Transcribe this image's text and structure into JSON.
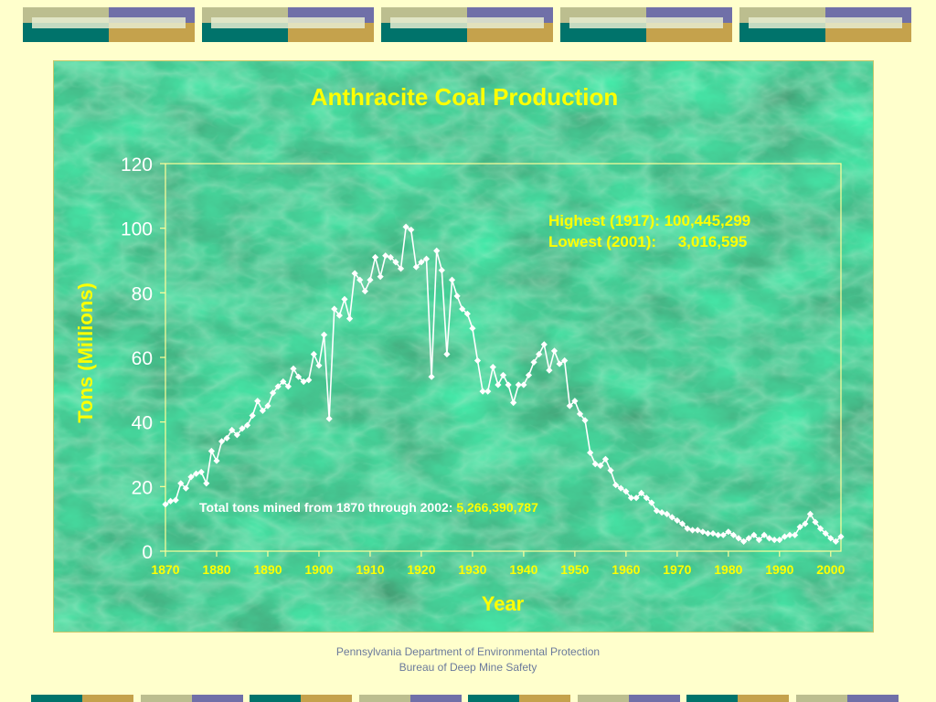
{
  "colors": {
    "background": "#ffffcc",
    "panel_green": "#2e6b45",
    "title": "#ffff00",
    "axis": "#ffff99",
    "data_line": "#ffffff",
    "footer_text": "#6b7a9c",
    "tile_olive": "#bcbe8f",
    "tile_purple": "#7070a8",
    "tile_teal": "#00736b",
    "tile_gold": "#c5a24c"
  },
  "annotations": {
    "highest": "Highest (1917): 100,445,299",
    "lowest": "Lowest (2001):     3,016,595",
    "total_label": "Total tons mined from 1870 through 2002: ",
    "total_value": "5,266,390,787"
  },
  "footer": {
    "line1": "Pennsylvania Department of Environmental Protection",
    "line2": "Bureau of Deep Mine Safety"
  },
  "chart_data": {
    "type": "line",
    "title": "Anthracite Coal Production",
    "xlabel": "Year",
    "ylabel": "Tons (Millions)",
    "xlim": [
      1870,
      2002
    ],
    "ylim": [
      0,
      120
    ],
    "x_ticks": [
      1870,
      1880,
      1890,
      1900,
      1910,
      1920,
      1930,
      1940,
      1950,
      1960,
      1970,
      1980,
      1990,
      2000
    ],
    "y_ticks": [
      0,
      20,
      40,
      60,
      80,
      100,
      120
    ],
    "grid": false,
    "markers": "diamond",
    "series": [
      {
        "name": "",
        "x": [
          1870,
          1871,
          1872,
          1873,
          1874,
          1875,
          1876,
          1877,
          1878,
          1879,
          1880,
          1881,
          1882,
          1883,
          1884,
          1885,
          1886,
          1887,
          1888,
          1889,
          1890,
          1891,
          1892,
          1893,
          1894,
          1895,
          1896,
          1897,
          1898,
          1899,
          1900,
          1901,
          1902,
          1903,
          1904,
          1905,
          1906,
          1907,
          1908,
          1909,
          1910,
          1911,
          1912,
          1913,
          1914,
          1915,
          1916,
          1917,
          1918,
          1919,
          1920,
          1921,
          1922,
          1923,
          1924,
          1925,
          1926,
          1927,
          1928,
          1929,
          1930,
          1931,
          1932,
          1933,
          1934,
          1935,
          1936,
          1937,
          1938,
          1939,
          1940,
          1941,
          1942,
          1943,
          1944,
          1945,
          1946,
          1947,
          1948,
          1949,
          1950,
          1951,
          1952,
          1953,
          1954,
          1955,
          1956,
          1957,
          1958,
          1959,
          1960,
          1961,
          1962,
          1963,
          1964,
          1965,
          1966,
          1967,
          1968,
          1969,
          1970,
          1971,
          1972,
          1973,
          1974,
          1975,
          1976,
          1977,
          1978,
          1979,
          1980,
          1981,
          1982,
          1983,
          1984,
          1985,
          1986,
          1987,
          1988,
          1989,
          1990,
          1991,
          1992,
          1993,
          1994,
          1995,
          1996,
          1997,
          1998,
          1999,
          2000,
          2001,
          2002
        ],
        "values": [
          14.5,
          15.5,
          15.8,
          21,
          19.5,
          23,
          24,
          24.5,
          21,
          31,
          28,
          34,
          35,
          37.5,
          36,
          38,
          39,
          42,
          46.5,
          43.5,
          45,
          49,
          51,
          52.5,
          51,
          56.5,
          54,
          52.5,
          53,
          61,
          57.5,
          67,
          41,
          75,
          73,
          78,
          72,
          86,
          84,
          80.5,
          84,
          91,
          85,
          91.5,
          91,
          89.5,
          87.5,
          100.4,
          99.5,
          88,
          89.5,
          90.5,
          54,
          93,
          87,
          61,
          84,
          79,
          75,
          73.5,
          69,
          59,
          49.5,
          49.5,
          57,
          51.5,
          54.5,
          51.5,
          46,
          51.5,
          51.5,
          54.5,
          58.5,
          61,
          64,
          56,
          62,
          58,
          59,
          45,
          46.5,
          42.5,
          40.5,
          30.5,
          27,
          26.5,
          28.5,
          25,
          20.5,
          19.5,
          18.5,
          16.5,
          16.5,
          18,
          16.5,
          15,
          12.5,
          12,
          11.5,
          10.5,
          9.5,
          8.5,
          7,
          6.5,
          6.5,
          6,
          5.5,
          5.5,
          5,
          5,
          6,
          5,
          4,
          3,
          4,
          5,
          3.5,
          5,
          4,
          3.5,
          3.5,
          4.5,
          5,
          5,
          7.5,
          8.5,
          11.5,
          9,
          7,
          5.5,
          4,
          3.016,
          4.5
        ]
      }
    ]
  }
}
